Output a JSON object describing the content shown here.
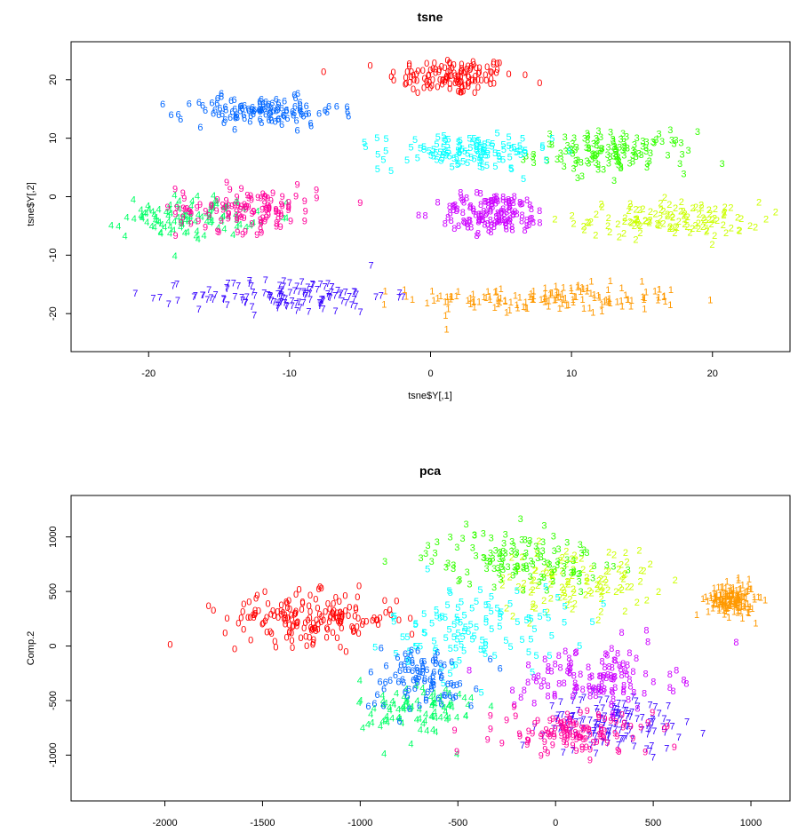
{
  "chart_data": [
    {
      "type": "scatter",
      "title": "tsne",
      "xlabel": "tsne$Y[,1]",
      "ylabel": "tsne$Y[,2]",
      "xlim": [
        -25.5,
        25.5
      ],
      "ylim": [
        -26.5,
        26.5
      ],
      "xticks": [
        -20,
        -10,
        0,
        10,
        20
      ],
      "yticks": [
        -20,
        -10,
        0,
        10,
        20
      ],
      "xtick_labels": [
        "-20",
        "-10",
        "0",
        "10",
        "20"
      ],
      "ytick_labels": [
        "-20",
        "-10",
        "0",
        "10",
        "20"
      ],
      "grid": false,
      "point_markers": "digit labels 0-9",
      "digit_colors": {
        "0": "#ff0000",
        "1": "#ff9900",
        "2": "#ccff00",
        "3": "#33ff00",
        "4": "#00ff66",
        "5": "#00ffff",
        "6": "#0066ff",
        "7": "#3300ff",
        "8": "#cc00ff",
        "9": "#ff0099"
      },
      "clusters": [
        {
          "digit": "0",
          "center": [
            1.5,
            20.5
          ],
          "spread": [
            4.5,
            3.2
          ],
          "count": 130
        },
        {
          "digit": "1",
          "center": [
            8.5,
            -17.5
          ],
          "spread": [
            9.5,
            2.5
          ],
          "count": 150
        },
        {
          "digit": "2",
          "center": [
            17.0,
            -4.0
          ],
          "spread": [
            6.5,
            3.0
          ],
          "count": 120
        },
        {
          "digit": "3",
          "center": [
            13.0,
            7.5
          ],
          "spread": [
            5.5,
            3.5
          ],
          "count": 130
        },
        {
          "digit": "4",
          "center": [
            -17.0,
            -3.5
          ],
          "spread": [
            4.5,
            3.5
          ],
          "count": 110
        },
        {
          "digit": "5",
          "center": [
            2.5,
            7.5
          ],
          "spread": [
            6.0,
            3.0
          ],
          "count": 120
        },
        {
          "digit": "6",
          "center": [
            -12.0,
            14.5
          ],
          "spread": [
            5.5,
            2.5
          ],
          "count": 120
        },
        {
          "digit": "7",
          "center": [
            -10.0,
            -17.0
          ],
          "spread": [
            7.0,
            3.0
          ],
          "count": 130
        },
        {
          "digit": "8",
          "center": [
            4.5,
            -3.0
          ],
          "spread": [
            4.0,
            3.5
          ],
          "count": 130
        },
        {
          "digit": "9",
          "center": [
            -13.0,
            -2.0
          ],
          "spread": [
            5.0,
            4.0
          ],
          "count": 120
        }
      ]
    },
    {
      "type": "scatter",
      "title": "pca",
      "xlabel": "",
      "ylabel": "Comp.2",
      "xlim": [
        -2480,
        1200
      ],
      "ylim": [
        -1420,
        1380
      ],
      "xticks": [
        -2000,
        -1500,
        -1000,
        -500,
        0,
        500,
        1000
      ],
      "yticks": [
        -1000,
        -500,
        0,
        500,
        1000
      ],
      "xtick_labels": [
        "-2000",
        "-1500",
        "-1000",
        "-500",
        "0",
        "500",
        "1000"
      ],
      "ytick_labels": [
        "-1000",
        "-500",
        "0",
        "500",
        "1000"
      ],
      "grid": false,
      "point_markers": "digit labels 0-9",
      "digit_colors": {
        "0": "#ff0000",
        "1": "#ff9900",
        "2": "#ccff00",
        "3": "#33ff00",
        "4": "#00ff66",
        "5": "#00ffff",
        "6": "#0066ff",
        "7": "#3300ff",
        "8": "#cc00ff",
        "9": "#ff0099"
      },
      "clusters": [
        {
          "digit": "0",
          "center": [
            -1250,
            250
          ],
          "spread": [
            450,
            230
          ],
          "count": 180
        },
        {
          "digit": "1",
          "center": [
            900,
            420
          ],
          "spread": [
            120,
            150
          ],
          "count": 150
        },
        {
          "digit": "2",
          "center": [
            100,
            600
          ],
          "spread": [
            400,
            300
          ],
          "count": 110
        },
        {
          "digit": "3",
          "center": [
            -200,
            800
          ],
          "spread": [
            450,
            250
          ],
          "count": 120
        },
        {
          "digit": "4",
          "center": [
            -700,
            -600
          ],
          "spread": [
            300,
            300
          ],
          "count": 90
        },
        {
          "digit": "5",
          "center": [
            -400,
            150
          ],
          "spread": [
            450,
            400
          ],
          "count": 110
        },
        {
          "digit": "6",
          "center": [
            -700,
            -300
          ],
          "spread": [
            300,
            300
          ],
          "count": 90
        },
        {
          "digit": "7",
          "center": [
            300,
            -700
          ],
          "spread": [
            350,
            250
          ],
          "count": 130
        },
        {
          "digit": "8",
          "center": [
            200,
            -300
          ],
          "spread": [
            400,
            300
          ],
          "count": 120
        },
        {
          "digit": "9",
          "center": [
            100,
            -800
          ],
          "spread": [
            400,
            200
          ],
          "count": 120
        }
      ]
    }
  ]
}
